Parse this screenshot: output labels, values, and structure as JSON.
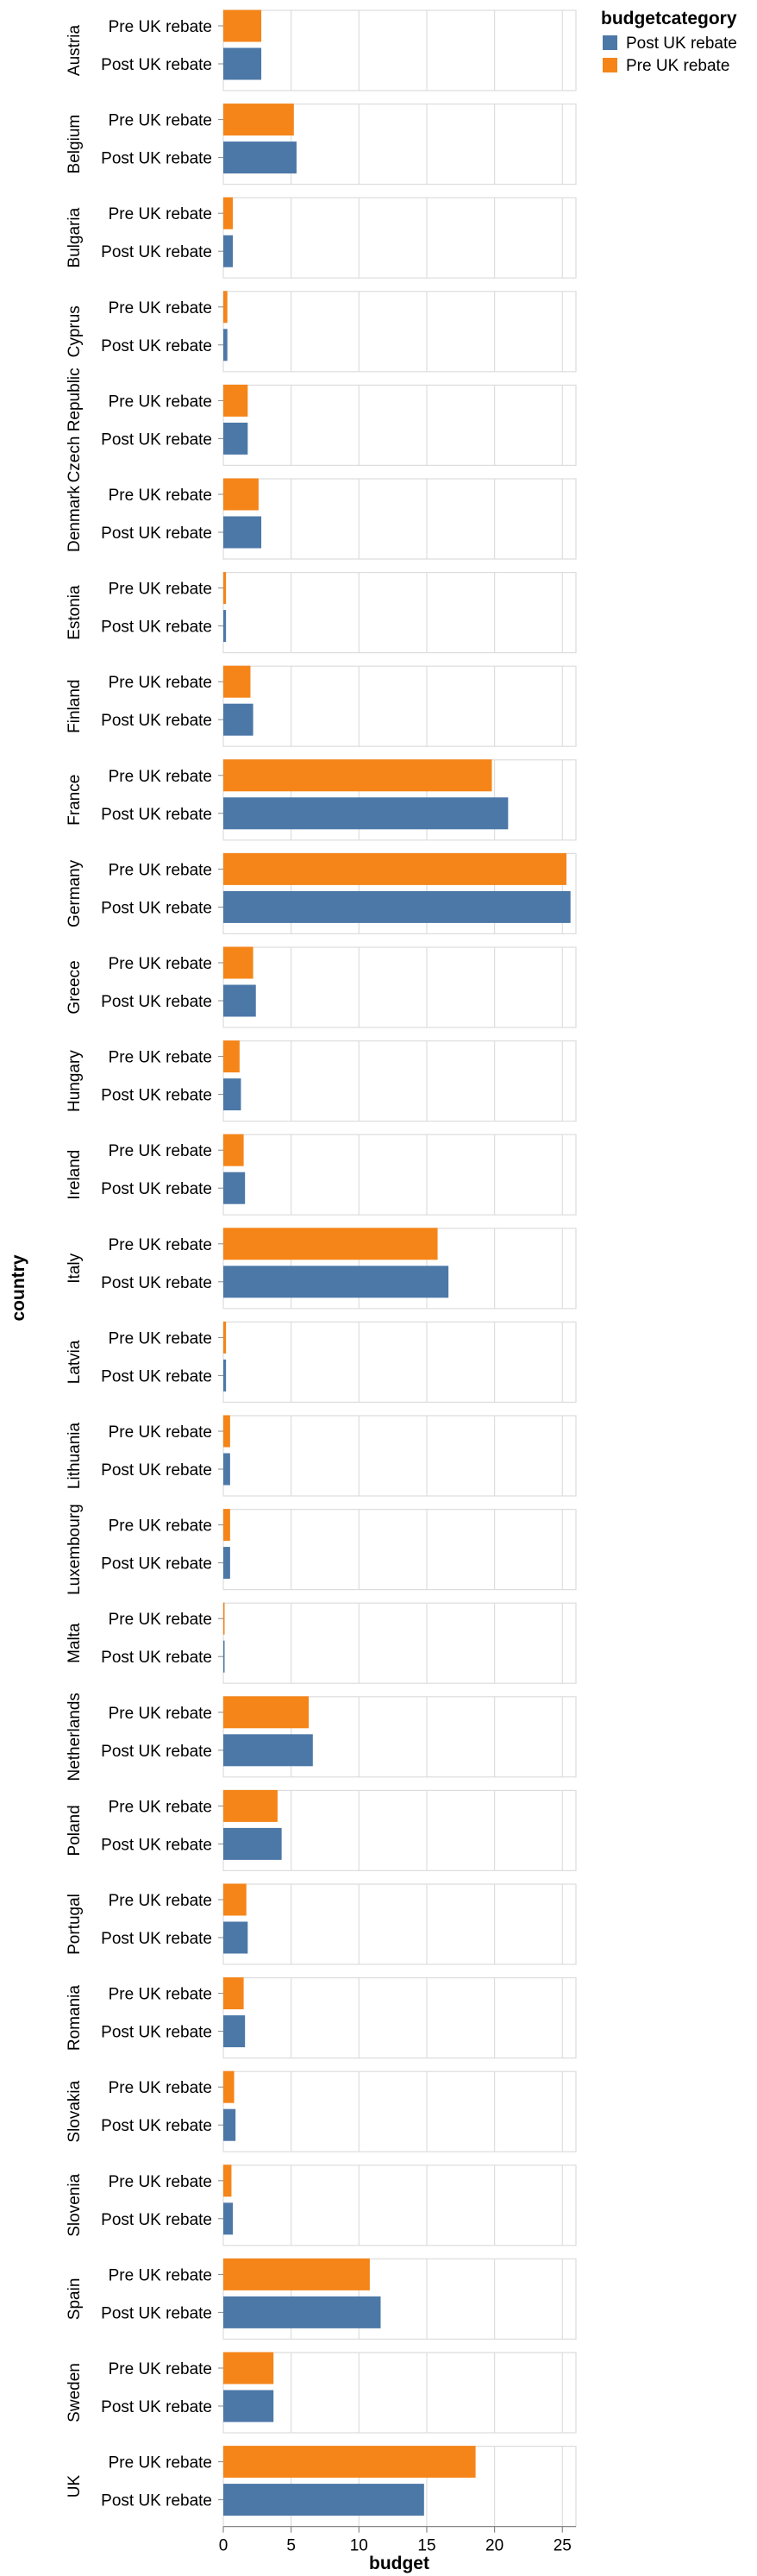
{
  "chart_data": {
    "type": "bar",
    "orientation": "horizontal",
    "faceted_by": "country",
    "xlabel": "budget",
    "ylabel": "country",
    "xlim": [
      0,
      26
    ],
    "x_ticks": [
      0,
      5,
      10,
      15,
      20,
      25
    ],
    "grid": true,
    "legend": {
      "title": "budgetcategory",
      "placement": "top-right",
      "entries": [
        {
          "name": "Post UK rebate",
          "color": "#4c78a8"
        },
        {
          "name": "Pre UK rebate",
          "color": "#f58518"
        }
      ]
    },
    "row_categories": [
      "Pre UK rebate",
      "Post UK rebate"
    ],
    "countries": [
      {
        "name": "Austria",
        "pre": 2.8,
        "post": 2.8
      },
      {
        "name": "Belgium",
        "pre": 5.2,
        "post": 5.4
      },
      {
        "name": "Bulgaria",
        "pre": 0.7,
        "post": 0.7
      },
      {
        "name": "Cyprus",
        "pre": 0.3,
        "post": 0.3
      },
      {
        "name": "Czech Republic",
        "pre": 1.8,
        "post": 1.8
      },
      {
        "name": "Denmark",
        "pre": 2.6,
        "post": 2.8
      },
      {
        "name": "Estonia",
        "pre": 0.2,
        "post": 0.2
      },
      {
        "name": "Finland",
        "pre": 2.0,
        "post": 2.2
      },
      {
        "name": "France",
        "pre": 19.8,
        "post": 21.0
      },
      {
        "name": "Germany",
        "pre": 25.3,
        "post": 25.6
      },
      {
        "name": "Greece",
        "pre": 2.2,
        "post": 2.4
      },
      {
        "name": "Hungary",
        "pre": 1.2,
        "post": 1.3
      },
      {
        "name": "Ireland",
        "pre": 1.5,
        "post": 1.6
      },
      {
        "name": "Italy",
        "pre": 15.8,
        "post": 16.6
      },
      {
        "name": "Latvia",
        "pre": 0.2,
        "post": 0.2
      },
      {
        "name": "Lithuania",
        "pre": 0.5,
        "post": 0.5
      },
      {
        "name": "Luxembourg",
        "pre": 0.5,
        "post": 0.5
      },
      {
        "name": "Malta",
        "pre": 0.05,
        "post": 0.05
      },
      {
        "name": "Netherlands",
        "pre": 6.3,
        "post": 6.6
      },
      {
        "name": "Poland",
        "pre": 4.0,
        "post": 4.3
      },
      {
        "name": "Portugal",
        "pre": 1.7,
        "post": 1.8
      },
      {
        "name": "Romania",
        "pre": 1.5,
        "post": 1.6
      },
      {
        "name": "Slovakia",
        "pre": 0.8,
        "post": 0.9
      },
      {
        "name": "Slovenia",
        "pre": 0.6,
        "post": 0.7
      },
      {
        "name": "Spain",
        "pre": 10.8,
        "post": 11.6
      },
      {
        "name": "Sweden",
        "pre": 3.7,
        "post": 3.7
      },
      {
        "name": "UK",
        "pre": 18.6,
        "post": 14.8
      }
    ]
  }
}
